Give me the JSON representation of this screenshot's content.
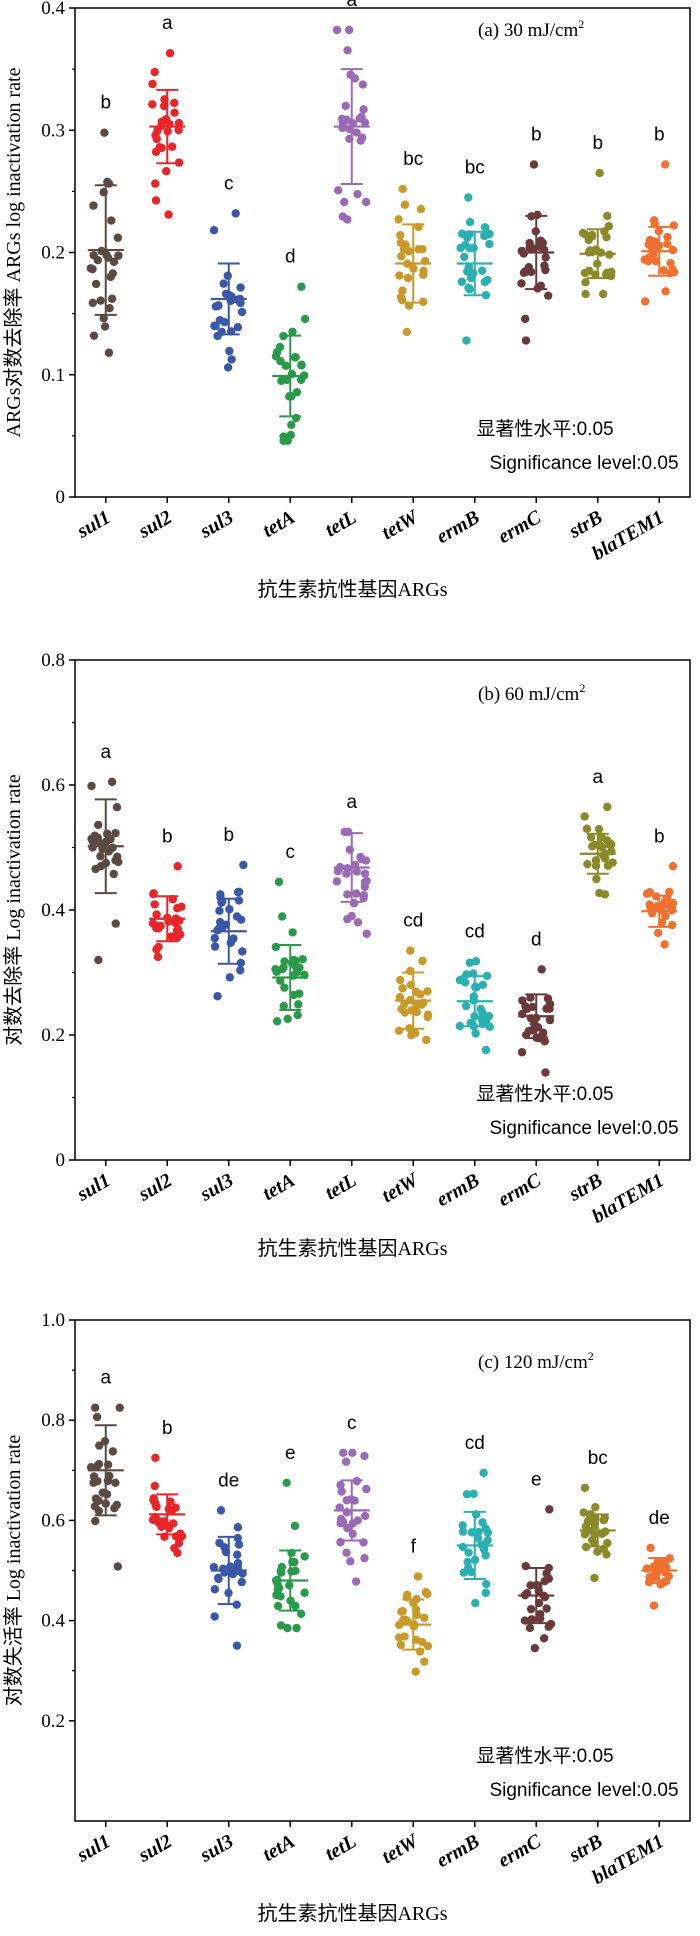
{
  "figure": {
    "significance_cn": "显著性水平:0.05",
    "significance_en": "Significance level:0.05",
    "xlabel": "抗生素抗性基因ARGs",
    "palette": {
      "sul1": "#5a4a42",
      "sul2": "#e8262a",
      "sul3": "#3a57a8",
      "tetA": "#2a9a4a",
      "tetL": "#9b6ab5",
      "tetW": "#c99a2a",
      "ermB": "#2ab0b0",
      "ermC": "#6a3a3a",
      "strB": "#8a8a2a",
      "blaTEM1": "#f07030"
    }
  },
  "chart_data": [
    {
      "type": "scatter",
      "title": "(a) 30 mJ/cm",
      "title_superscript": "2",
      "ylabel": "ARGs对数去除率 ARGs log inactivation rate",
      "xlabel": "抗生素抗性基因ARGs",
      "ylim": [
        0,
        0.4
      ],
      "yticks": [
        0,
        0.1,
        0.2,
        0.3,
        0.4
      ],
      "ytick_labels": [
        "0",
        "0.1",
        "0.2",
        "0.3",
        "0.4"
      ],
      "categories": [
        "sul1",
        "sul2",
        "sul3",
        "tetA",
        "tetL",
        "tetW",
        "ermB",
        "ermC",
        "strB",
        "blaTEM1"
      ],
      "means": [
        0.202,
        0.303,
        0.162,
        0.099,
        0.303,
        0.191,
        0.191,
        0.2,
        0.199,
        0.201
      ],
      "sd": [
        0.053,
        0.03,
        0.029,
        0.033,
        0.047,
        0.032,
        0.026,
        0.03,
        0.02,
        0.02
      ],
      "min": [
        0.118,
        0.231,
        0.106,
        0.046,
        0.227,
        0.135,
        0.128,
        0.128,
        0.166,
        0.16
      ],
      "max": [
        0.298,
        0.363,
        0.232,
        0.172,
        0.382,
        0.252,
        0.245,
        0.272,
        0.265,
        0.272
      ],
      "significance": [
        "b",
        "a",
        "c",
        "d",
        "a",
        "bc",
        "bc",
        "b",
        "b",
        "b"
      ]
    },
    {
      "type": "scatter",
      "title": "(b) 60 mJ/cm",
      "title_superscript": "2",
      "ylabel": "对数去除率 Log inactivation rate",
      "xlabel": "抗生素抗性基因ARGs",
      "ylim": [
        0,
        0.8
      ],
      "yticks": [
        0,
        0.2,
        0.4,
        0.6,
        0.8
      ],
      "ytick_labels": [
        "0",
        "0.2",
        "0.4",
        "0.6",
        "0.8"
      ],
      "categories": [
        "sul1",
        "sul2",
        "sul3",
        "tetA",
        "tetL",
        "tetW",
        "ermB",
        "ermC",
        "strB",
        "blaTEM1"
      ],
      "means": [
        0.502,
        0.386,
        0.366,
        0.292,
        0.468,
        0.255,
        0.254,
        0.23,
        0.49,
        0.398
      ],
      "sd": [
        0.075,
        0.036,
        0.052,
        0.052,
        0.055,
        0.045,
        0.04,
        0.035,
        0.032,
        0.025
      ],
      "min": [
        0.32,
        0.325,
        0.262,
        0.222,
        0.362,
        0.192,
        0.176,
        0.14,
        0.425,
        0.345
      ],
      "max": [
        0.605,
        0.47,
        0.472,
        0.445,
        0.525,
        0.335,
        0.318,
        0.305,
        0.565,
        0.47
      ],
      "significance": [
        "a",
        "b",
        "b",
        "c",
        "a",
        "cd",
        "cd",
        "d",
        "a",
        "b"
      ]
    },
    {
      "type": "scatter",
      "title": "(c) 120 mJ/cm",
      "title_superscript": "2",
      "ylabel": "对数失活率 Log inactivation rate",
      "xlabel": "抗生素抗性基因ARGs",
      "ylim": [
        0,
        1.0
      ],
      "yticks": [
        0.2,
        0.4,
        0.6,
        0.8,
        1.0
      ],
      "ytick_labels": [
        "0.2",
        "0.4",
        "0.6",
        "0.8",
        "1.0"
      ],
      "categories": [
        "sul1",
        "sul2",
        "sul3",
        "tetA",
        "tetL",
        "tetW",
        "ermB",
        "ermC",
        "strB",
        "blaTEM1"
      ],
      "means": [
        0.7,
        0.612,
        0.5,
        0.48,
        0.62,
        0.392,
        0.55,
        0.45,
        0.58,
        0.5
      ],
      "sd": [
        0.09,
        0.04,
        0.067,
        0.06,
        0.06,
        0.05,
        0.067,
        0.055,
        0.032,
        0.025
      ],
      "min": [
        0.508,
        0.535,
        0.35,
        0.385,
        0.478,
        0.298,
        0.435,
        0.345,
        0.485,
        0.43
      ],
      "max": [
        0.825,
        0.725,
        0.62,
        0.675,
        0.735,
        0.488,
        0.695,
        0.622,
        0.665,
        0.545
      ],
      "significance": [
        "a",
        "b",
        "de",
        "e",
        "c",
        "f",
        "cd",
        "e",
        "bc",
        "de"
      ]
    }
  ]
}
